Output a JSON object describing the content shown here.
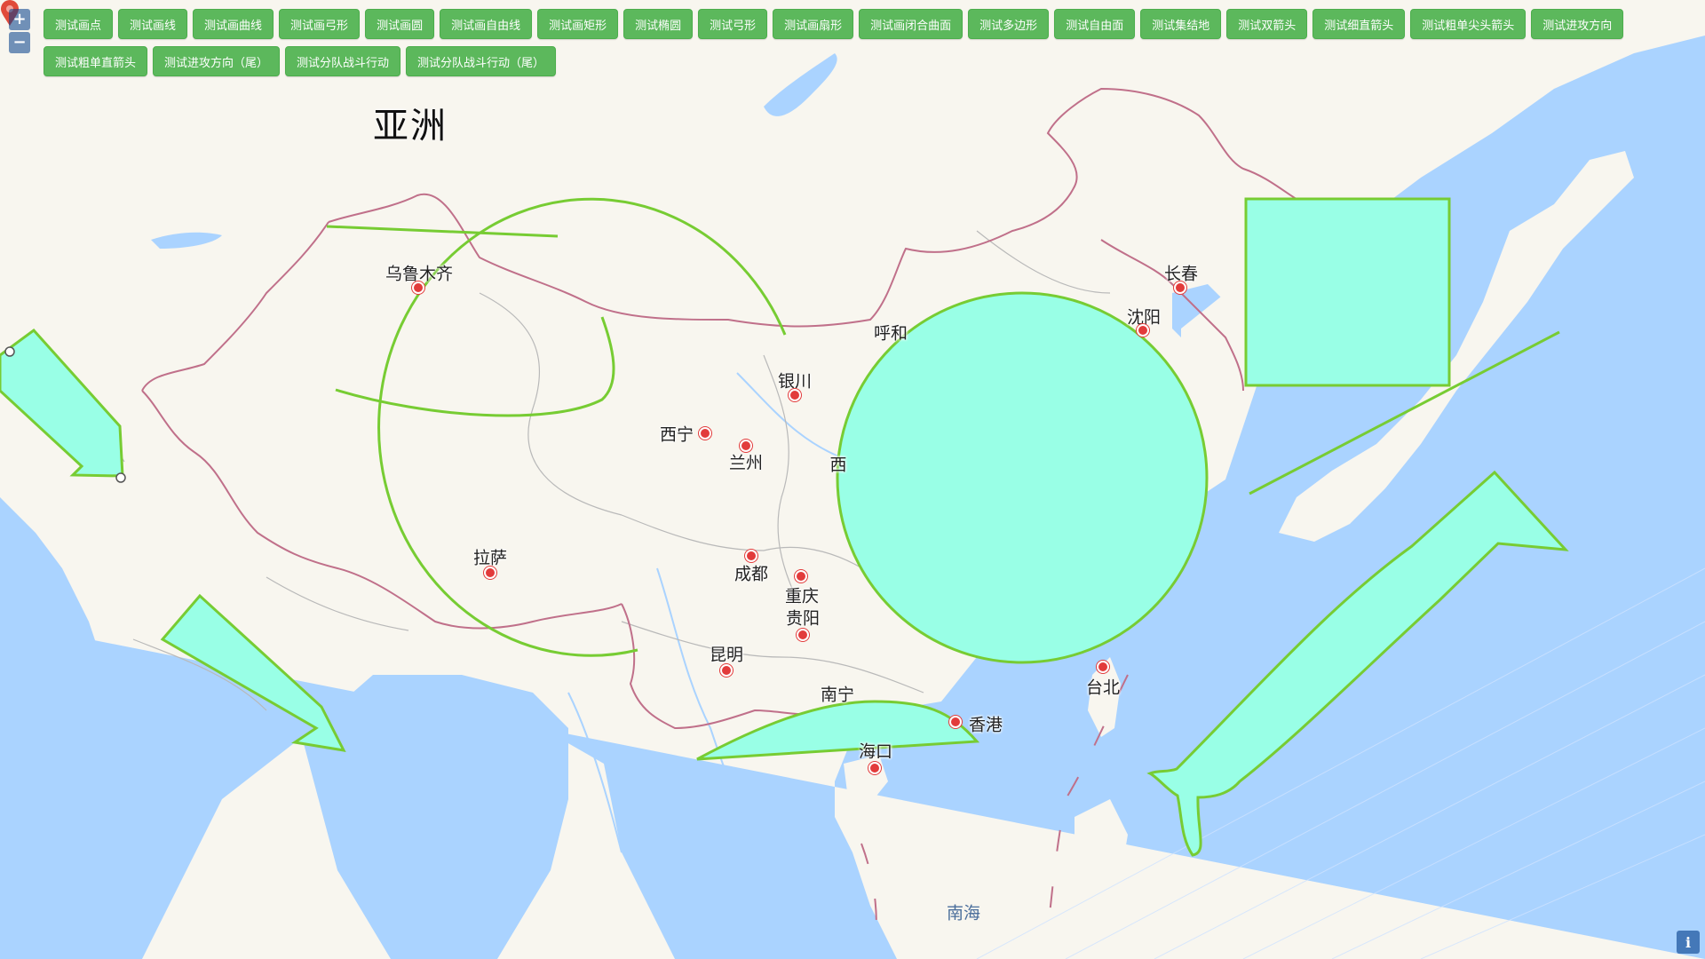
{
  "toolbar": {
    "buttons": [
      "测试画点",
      "测试画线",
      "测试画曲线",
      "测试画弓形",
      "测试画圆",
      "测试画自由线",
      "测试画矩形",
      "测试椭圆",
      "测试弓形",
      "测试画扇形",
      "测试画闭合曲面",
      "测试多边形",
      "测试自由面",
      "测试集结地",
      "测试双箭头",
      "测试细直箭头",
      "测试粗单尖头箭头",
      "测试进攻方向",
      "测试粗单直箭头",
      "测试进攻方向（尾）",
      "测试分队战斗行动",
      "测试分队战斗行动（尾）"
    ]
  },
  "zoom": {
    "in_label": "+",
    "out_label": "−"
  },
  "info_label": "i",
  "map": {
    "continent_label": "亚洲",
    "sea_label": "南海",
    "cities": [
      "乌鲁木齐",
      "呼和",
      "长春",
      "沈阳",
      "银川",
      "西宁",
      "兰州",
      "拉萨",
      "成都",
      "重庆",
      "贵阳",
      "昆明",
      "南宁",
      "香港",
      "海口",
      "台北",
      "西"
    ]
  },
  "colors": {
    "fill": "#99ffe6",
    "stroke": "#77cc33",
    "water": "#aad3ff",
    "land": "#f8f6ef",
    "border": "#c0708a",
    "button": "#5cb85c"
  }
}
